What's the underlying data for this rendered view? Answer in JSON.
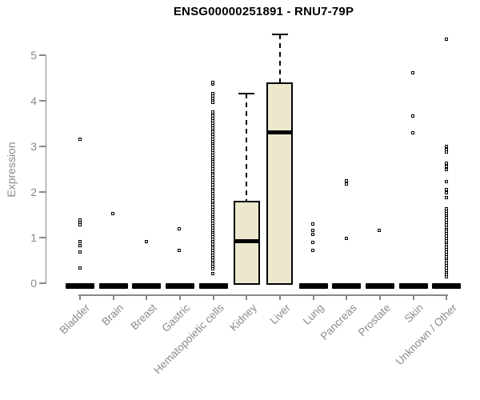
{
  "title": "ENSG00000251891 - RNU7-79P",
  "chart_data": {
    "type": "boxplot",
    "title": "ENSG00000251891 - RNU7-79P",
    "xlabel": "",
    "ylabel": "Expression",
    "ylim": [
      0,
      5.5
    ],
    "yticks": [
      0,
      1,
      2,
      3,
      4,
      5
    ],
    "grid": false,
    "legend": "none",
    "categories": [
      "Bladder",
      "Brain",
      "Breast",
      "Gastric",
      "Hematopoietic cells",
      "Kidney",
      "Liver",
      "Lung",
      "Pancreas",
      "Prostate",
      "Skin",
      "Unknown / Other"
    ],
    "boxes": [
      {
        "category": "Bladder",
        "collapsed": true,
        "q1": 0,
        "median": 0,
        "q3": 0,
        "whisker_low": 0,
        "whisker_high": 0,
        "outliers": [
          3.15,
          1.37,
          1.32,
          1.27,
          0.9,
          0.81,
          0.67,
          0.32
        ]
      },
      {
        "category": "Brain",
        "collapsed": true,
        "q1": 0,
        "median": 0,
        "q3": 0,
        "whisker_low": 0,
        "whisker_high": 0,
        "outliers": [
          1.52
        ]
      },
      {
        "category": "Breast",
        "collapsed": true,
        "q1": 0,
        "median": 0,
        "q3": 0,
        "whisker_low": 0,
        "whisker_high": 0,
        "outliers": [
          0.9
        ]
      },
      {
        "category": "Gastric",
        "collapsed": true,
        "q1": 0,
        "median": 0,
        "q3": 0,
        "whisker_low": 0,
        "whisker_high": 0,
        "outliers": [
          1.18,
          0.71
        ]
      },
      {
        "category": "Hematopoietic cells",
        "collapsed": true,
        "q1": 0,
        "median": 0,
        "q3": 0,
        "whisker_low": 0,
        "whisker_high": 0,
        "outliers": [
          0.2,
          0.3,
          0.35,
          0.4,
          0.45,
          0.5,
          0.55,
          0.6,
          0.65,
          0.7,
          0.75,
          0.8,
          0.85,
          0.9,
          0.95,
          1.0,
          1.05,
          1.1,
          1.15,
          1.2,
          1.25,
          1.3,
          1.35,
          1.4,
          1.45,
          1.5,
          1.55,
          1.6,
          1.65,
          1.7,
          1.75,
          1.8,
          1.85,
          1.9,
          1.95,
          2.0,
          2.05,
          2.1,
          2.15,
          2.2,
          2.25,
          2.3,
          2.35,
          2.4,
          2.45,
          2.5,
          2.55,
          2.6,
          2.65,
          2.7,
          2.75,
          2.8,
          2.85,
          2.9,
          2.95,
          3.0,
          3.05,
          3.1,
          3.15,
          3.2,
          3.25,
          3.3,
          3.35,
          3.4,
          3.45,
          3.5,
          3.55,
          3.6,
          3.65,
          3.7,
          3.75,
          3.95,
          4.0,
          4.05,
          4.1,
          4.15,
          4.35,
          4.4
        ]
      },
      {
        "category": "Kidney",
        "collapsed": false,
        "q1": 0,
        "median": 0.92,
        "q3": 1.8,
        "whisker_low": 0,
        "whisker_high": 4.15,
        "outliers": []
      },
      {
        "category": "Liver",
        "collapsed": false,
        "q1": 0,
        "median": 3.3,
        "q3": 4.4,
        "whisker_low": 0,
        "whisker_high": 5.45,
        "outliers": []
      },
      {
        "category": "Lung",
        "collapsed": true,
        "q1": 0,
        "median": 0,
        "q3": 0,
        "whisker_low": 0,
        "whisker_high": 0,
        "outliers": [
          1.28,
          1.14,
          1.05,
          0.88,
          0.7
        ]
      },
      {
        "category": "Pancreas",
        "collapsed": true,
        "q1": 0,
        "median": 0,
        "q3": 0,
        "whisker_low": 0,
        "whisker_high": 0,
        "outliers": [
          2.23,
          2.17,
          0.97
        ]
      },
      {
        "category": "Prostate",
        "collapsed": true,
        "q1": 0,
        "median": 0,
        "q3": 0,
        "whisker_low": 0,
        "whisker_high": 0,
        "outliers": [
          1.15
        ]
      },
      {
        "category": "Skin",
        "collapsed": true,
        "q1": 0,
        "median": 0,
        "q3": 0,
        "whisker_low": 0,
        "whisker_high": 0,
        "outliers": [
          4.6,
          3.65,
          3.28
        ]
      },
      {
        "category": "Unknown / Other",
        "collapsed": true,
        "q1": 0,
        "median": 0,
        "q3": 0,
        "whisker_low": 0,
        "whisker_high": 0,
        "outliers": [
          0.12,
          0.17,
          0.22,
          0.27,
          0.32,
          0.37,
          0.42,
          0.47,
          0.52,
          0.57,
          0.62,
          0.67,
          0.72,
          0.77,
          0.82,
          0.87,
          0.92,
          0.97,
          1.02,
          1.07,
          1.12,
          1.17,
          1.22,
          1.27,
          1.32,
          1.37,
          1.42,
          1.47,
          1.52,
          1.57,
          1.62,
          1.87,
          1.96,
          2.04,
          2.21,
          2.48,
          2.55,
          2.62,
          2.86,
          2.92,
          2.98,
          5.35
        ]
      }
    ],
    "colors": {
      "box_fill": "#ece8ce",
      "box_border": "#000000",
      "median": "#000000",
      "axis": "#888888",
      "tick_label": "#8a8a8a",
      "title": "#000000",
      "background": "#ffffff"
    }
  }
}
